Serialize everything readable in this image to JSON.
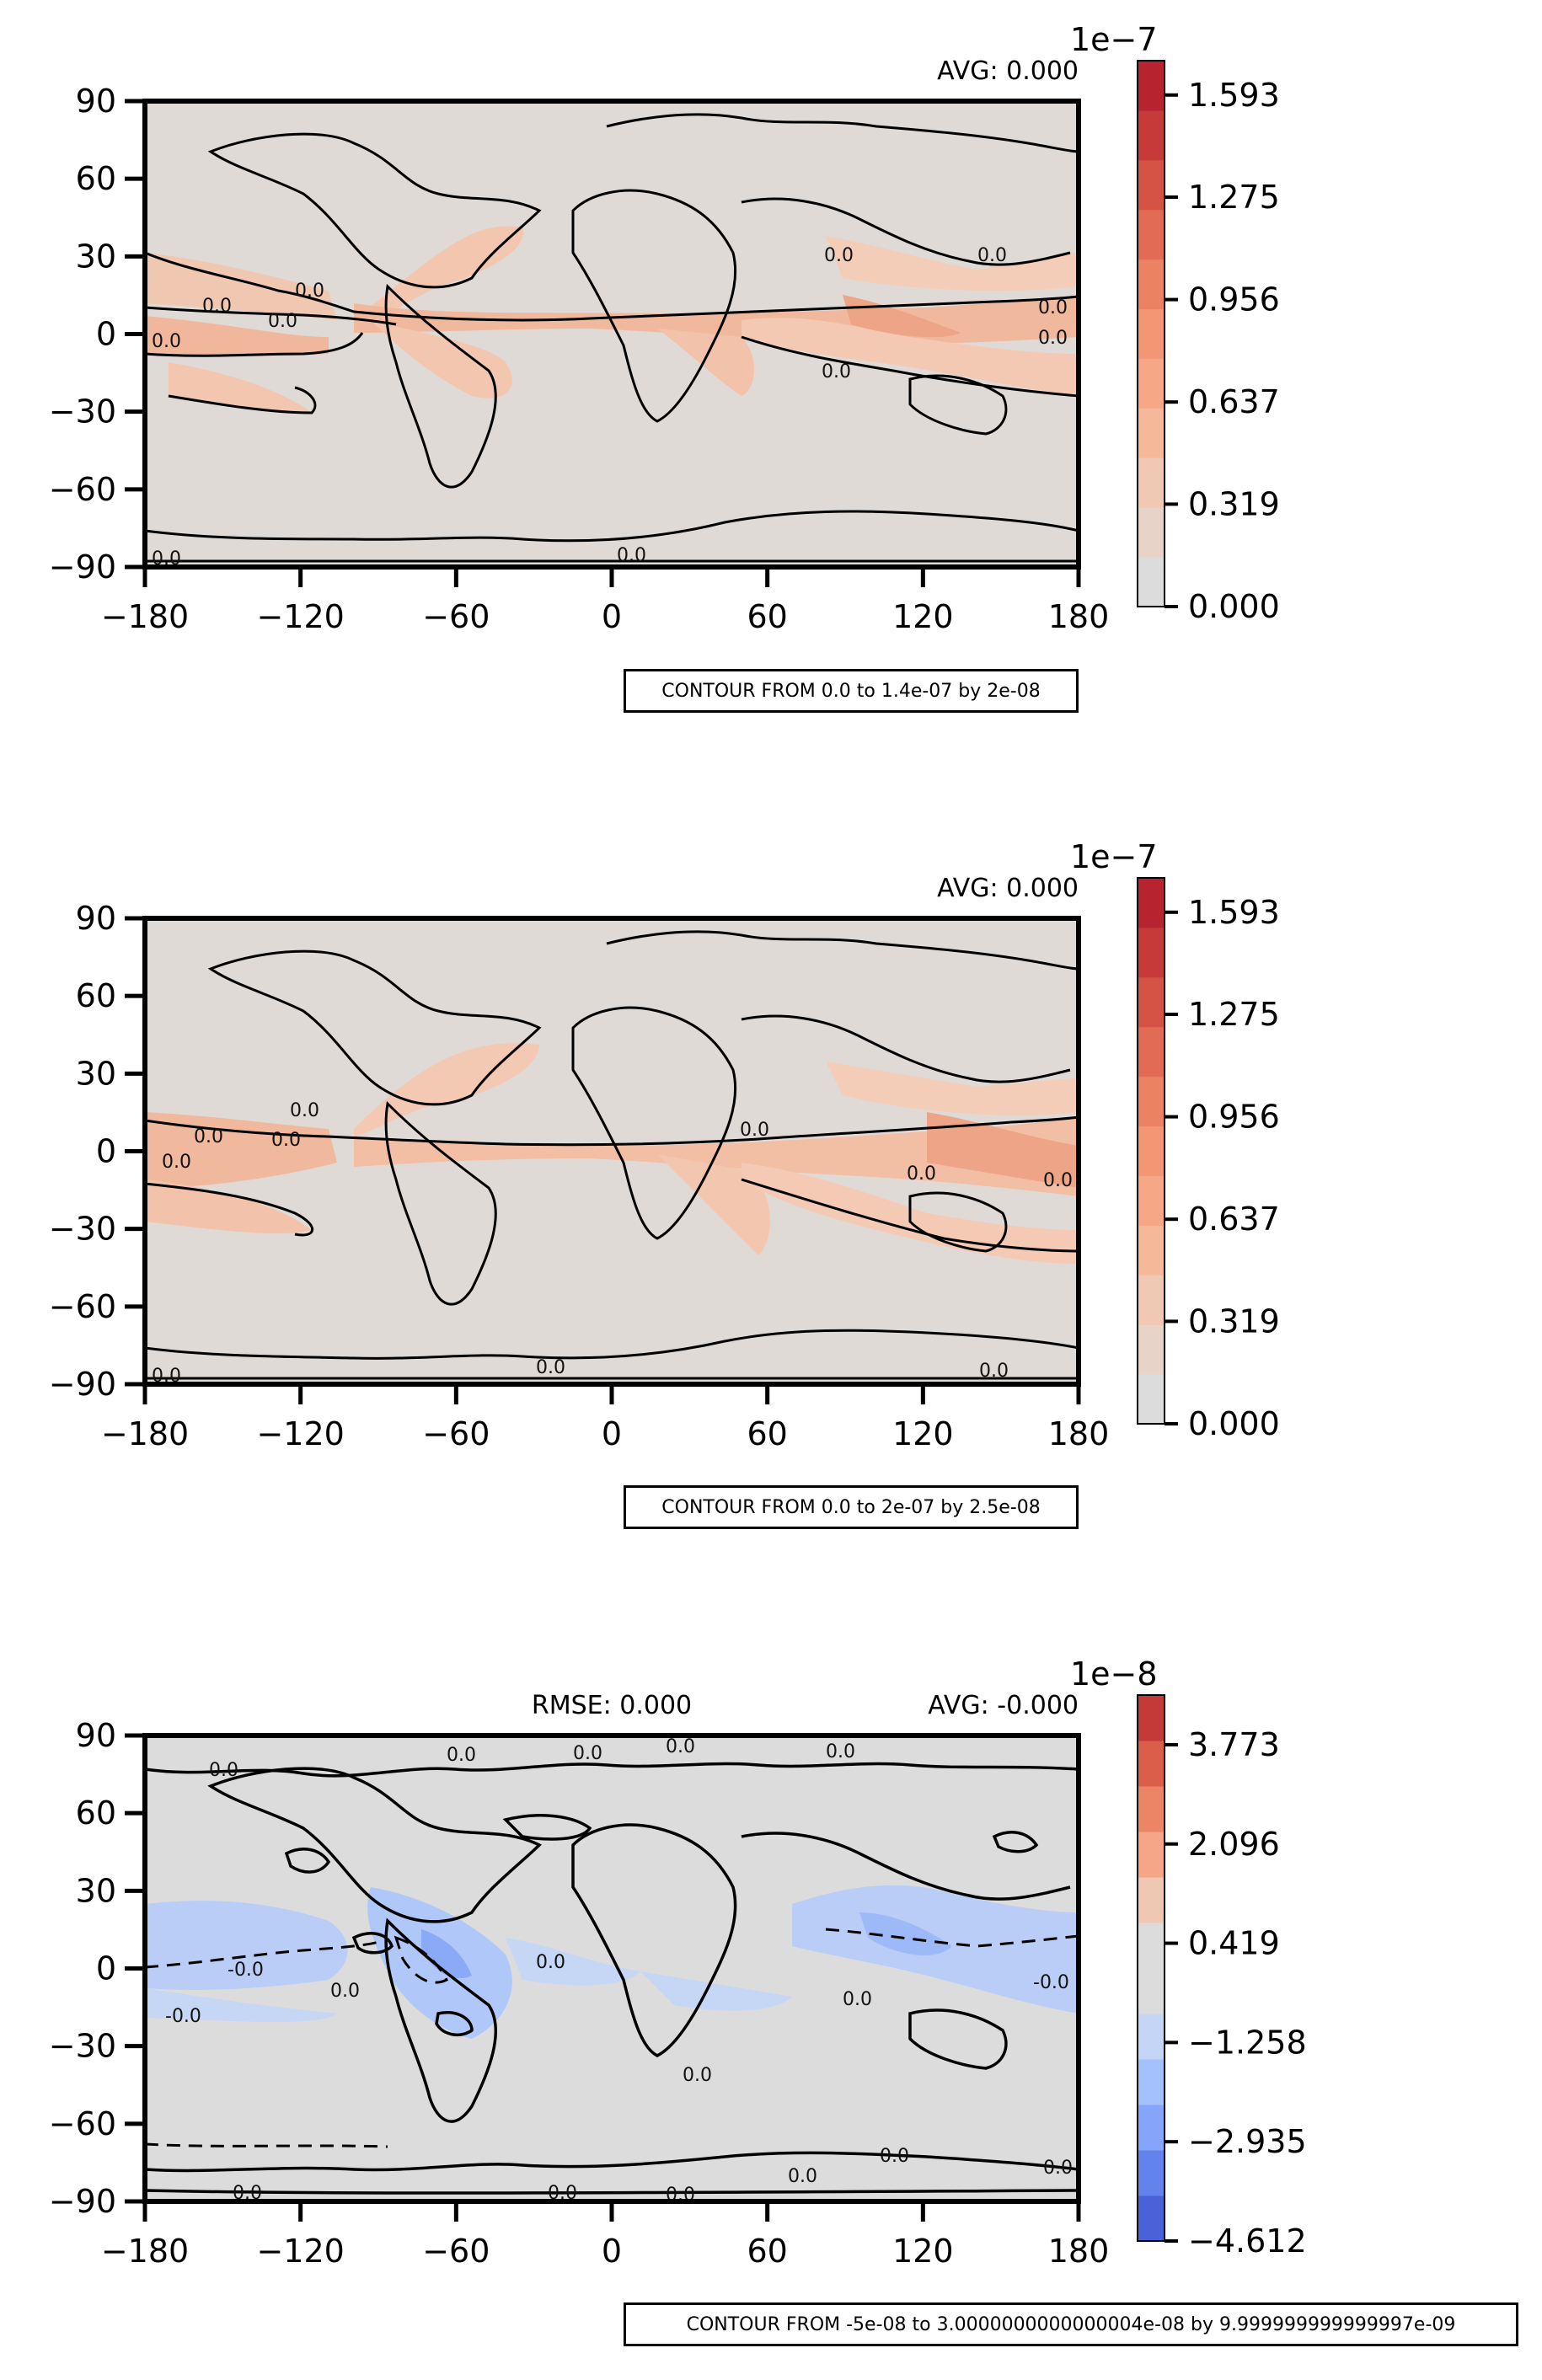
{
  "chart_data": [
    {
      "type": "heatmap",
      "projection": "lat-lon map with coastlines",
      "x_ticks": [
        "−180",
        "−120",
        "−60",
        "0",
        "60",
        "120",
        "180"
      ],
      "y_ticks": [
        "90",
        "60",
        "30",
        "0",
        "−30",
        "−60",
        "−90"
      ],
      "xlim": [
        -180,
        180
      ],
      "ylim": [
        -90,
        90
      ],
      "avg_text": "AVG: 0.000",
      "rmse_text": "",
      "colorbar": {
        "exponent": "1e−7",
        "ticks": [
          "0.000",
          "0.319",
          "0.637",
          "0.956",
          "1.275",
          "1.593"
        ],
        "tick_values": [
          0.0,
          0.319,
          0.637,
          0.956,
          1.275,
          1.593
        ],
        "range": [
          0,
          1.7
        ],
        "colors": [
          "#dddcdc",
          "#e8d3c8",
          "#f1c8b3",
          "#f5b99a",
          "#f6a886",
          "#f39673",
          "#eb8262",
          "#e16b53",
          "#d45345",
          "#c63b39",
          "#b7232f"
        ]
      },
      "contour_note": "CONTOUR FROM 0.0 to 1.4e-07 by 2e-08",
      "contour_labels": [
        "0.0",
        "0.0",
        "0.0",
        "0.0",
        "0.0",
        "0.0",
        "0.0",
        "0.0",
        "0.0",
        "0.0",
        "0.0"
      ]
    },
    {
      "type": "heatmap",
      "projection": "lat-lon map with coastlines",
      "x_ticks": [
        "−180",
        "−120",
        "−60",
        "0",
        "60",
        "120",
        "180"
      ],
      "y_ticks": [
        "90",
        "60",
        "30",
        "0",
        "−30",
        "−60",
        "−90"
      ],
      "xlim": [
        -180,
        180
      ],
      "ylim": [
        -90,
        90
      ],
      "avg_text": "AVG: 0.000",
      "rmse_text": "",
      "colorbar": {
        "exponent": "1e−7",
        "ticks": [
          "0.000",
          "0.319",
          "0.637",
          "0.956",
          "1.275",
          "1.593"
        ],
        "tick_values": [
          0.0,
          0.319,
          0.637,
          0.956,
          1.275,
          1.593
        ],
        "range": [
          0,
          1.7
        ],
        "colors": [
          "#dddcdc",
          "#e8d3c8",
          "#f1c8b3",
          "#f5b99a",
          "#f6a886",
          "#f39673",
          "#eb8262",
          "#e16b53",
          "#d45345",
          "#c63b39",
          "#b7232f"
        ]
      },
      "contour_note": "CONTOUR FROM 0.0 to 2e-07 by 2.5e-08",
      "contour_labels": [
        "0.0",
        "0.0",
        "0.0",
        "0.0",
        "0.0",
        "0.0",
        "0.0",
        "0.0",
        "0.0",
        "0.0"
      ]
    },
    {
      "type": "heatmap",
      "projection": "lat-lon map with coastlines",
      "x_ticks": [
        "−180",
        "−120",
        "−60",
        "0",
        "60",
        "120",
        "180"
      ],
      "y_ticks": [
        "90",
        "60",
        "30",
        "0",
        "−30",
        "−60",
        "−90"
      ],
      "xlim": [
        -180,
        180
      ],
      "ylim": [
        -90,
        90
      ],
      "avg_text": "AVG: -0.000",
      "rmse_text": "RMSE: 0.000",
      "colorbar": {
        "exponent": "1e−8",
        "ticks": [
          "−4.612",
          "−2.935",
          "−1.258",
          "0.419",
          "2.096",
          "3.773"
        ],
        "tick_values": [
          -4.612,
          -2.935,
          -1.258,
          0.419,
          2.096,
          3.773
        ],
        "range": [
          -4.612,
          4.612
        ],
        "colors": [
          "#4a62d8",
          "#6383ec",
          "#84a5f9",
          "#a5c1fd",
          "#c4d5f5",
          "#dcdcdc",
          "#dcdcdc",
          "#f0c7b2",
          "#f5a688",
          "#ec8466",
          "#db5e4b",
          "#c43a39"
        ]
      },
      "contour_note": "CONTOUR FROM -5e-08 to 3.0000000000000004e-08 by 9.999999999999997e-09",
      "contour_labels": [
        "0.0",
        "0.0",
        "0.0",
        "0.0",
        "0.0",
        "-0.0",
        "0.0",
        "0.0",
        "-0.0",
        "0.0",
        "0.0",
        "-0.0",
        "0.0",
        "0.0",
        "0.0",
        "0.0",
        "0.0",
        "0.0"
      ]
    }
  ]
}
